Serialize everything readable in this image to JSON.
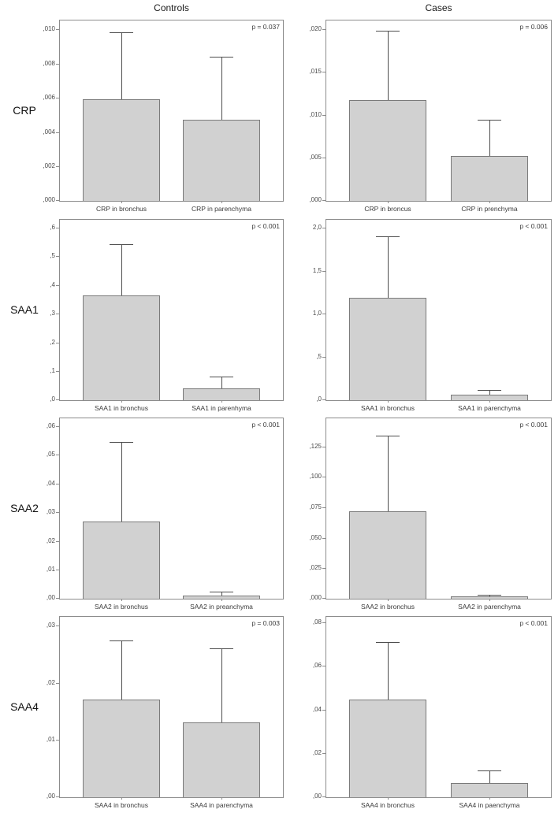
{
  "headers": [
    "Controls",
    "Cases"
  ],
  "rows": [
    "CRP",
    "SAA1",
    "SAA2",
    "SAA4"
  ],
  "colors": {
    "bar_fill": "#d1d1d1",
    "bar_border": "#7a7a7a",
    "frame_border": "#8c8c8c",
    "error_bar": "#4d4d4d",
    "text": "#3a3a3a"
  },
  "chart_data": [
    {
      "type": "bar",
      "row": "CRP",
      "group": "Controls",
      "p_label": "p = 0.037",
      "ylim": [
        0,
        0.0105
      ],
      "yticks": [
        {
          "v": 0,
          "label": ",000"
        },
        {
          "v": 0.002,
          "label": ",002"
        },
        {
          "v": 0.004,
          "label": ",004"
        },
        {
          "v": 0.006,
          "label": ",006"
        },
        {
          "v": 0.008,
          "label": ",008"
        },
        {
          "v": 0.01,
          "label": ",010"
        }
      ],
      "categories": [
        "CRP in bronchus",
        "CRP in parenchyma"
      ],
      "values": [
        0.0059,
        0.0047
      ],
      "error_upper": [
        0.0098,
        0.0084
      ]
    },
    {
      "type": "bar",
      "row": "CRP",
      "group": "Cases",
      "p_label": "p = 0.006",
      "ylim": [
        0,
        0.021
      ],
      "yticks": [
        {
          "v": 0,
          "label": ",000"
        },
        {
          "v": 0.005,
          "label": ",005"
        },
        {
          "v": 0.01,
          "label": ",010"
        },
        {
          "v": 0.015,
          "label": ",015"
        },
        {
          "v": 0.02,
          "label": ",020"
        }
      ],
      "categories": [
        "CRP in broncus",
        "CRP in prenchyma"
      ],
      "values": [
        0.0117,
        0.0052
      ],
      "error_upper": [
        0.0198,
        0.0094
      ]
    },
    {
      "type": "bar",
      "row": "SAA1",
      "group": "Controls",
      "p_label": "p < 0.001",
      "ylim": [
        0,
        0.627
      ],
      "yticks": [
        {
          "v": 0,
          "label": ",0"
        },
        {
          "v": 0.1,
          "label": ",1"
        },
        {
          "v": 0.2,
          "label": ",2"
        },
        {
          "v": 0.3,
          "label": ",3"
        },
        {
          "v": 0.4,
          "label": ",4"
        },
        {
          "v": 0.5,
          "label": ",5"
        },
        {
          "v": 0.6,
          "label": ",6"
        }
      ],
      "categories": [
        "SAA1 in bronchus",
        "SAA1 in parenhyma"
      ],
      "values": [
        0.363,
        0.041
      ],
      "error_upper": [
        0.543,
        0.081
      ]
    },
    {
      "type": "bar",
      "row": "SAA1",
      "group": "Cases",
      "p_label": "p < 0.001",
      "ylim": [
        0,
        2.09
      ],
      "yticks": [
        {
          "v": 0,
          "label": ",0"
        },
        {
          "v": 0.5,
          "label": ",5"
        },
        {
          "v": 1.0,
          "label": "1,0"
        },
        {
          "v": 1.5,
          "label": "1,5"
        },
        {
          "v": 2.0,
          "label": "2,0"
        }
      ],
      "categories": [
        "SAA1 in bronchus",
        "SAA1 in parenchyma"
      ],
      "values": [
        1.19,
        0.064
      ],
      "error_upper": [
        1.9,
        0.115
      ]
    },
    {
      "type": "bar",
      "row": "SAA2",
      "group": "Controls",
      "p_label": "p < 0.001",
      "ylim": [
        0,
        0.0627
      ],
      "yticks": [
        {
          "v": 0,
          "label": ",00"
        },
        {
          "v": 0.01,
          "label": ",01"
        },
        {
          "v": 0.02,
          "label": ",02"
        },
        {
          "v": 0.03,
          "label": ",03"
        },
        {
          "v": 0.04,
          "label": ",04"
        },
        {
          "v": 0.05,
          "label": ",05"
        },
        {
          "v": 0.06,
          "label": ",06"
        }
      ],
      "categories": [
        "SAA2 in bronchus",
        "SAA2 in preanchyma"
      ],
      "values": [
        0.0267,
        0.0012
      ],
      "error_upper": [
        0.0545,
        0.0025
      ]
    },
    {
      "type": "bar",
      "row": "SAA2",
      "group": "Cases",
      "p_label": "p < 0.001",
      "ylim": [
        0,
        0.148
      ],
      "yticks": [
        {
          "v": 0,
          "label": ",000"
        },
        {
          "v": 0.025,
          "label": ",025"
        },
        {
          "v": 0.05,
          "label": ",050"
        },
        {
          "v": 0.075,
          "label": ",075"
        },
        {
          "v": 0.1,
          "label": ",100"
        },
        {
          "v": 0.125,
          "label": ",125"
        }
      ],
      "categories": [
        "SAA2 in bronchus",
        "SAA2 in parenchyma"
      ],
      "values": [
        0.0715,
        0.002
      ],
      "error_upper": [
        0.134,
        0.0035
      ]
    },
    {
      "type": "bar",
      "row": "SAA4",
      "group": "Controls",
      "p_label": "p = 0.003",
      "ylim": [
        0,
        0.0315
      ],
      "yticks": [
        {
          "v": 0,
          "label": ",00"
        },
        {
          "v": 0.01,
          "label": ",01"
        },
        {
          "v": 0.02,
          "label": ",02"
        },
        {
          "v": 0.03,
          "label": ",03"
        }
      ],
      "categories": [
        "SAA4 in bronchus",
        "SAA4 in parenchyma"
      ],
      "values": [
        0.0171,
        0.013
      ],
      "error_upper": [
        0.0274,
        0.026
      ]
    },
    {
      "type": "bar",
      "row": "SAA4",
      "group": "Cases",
      "p_label": "p < 0.001",
      "ylim": [
        0,
        0.0824
      ],
      "yticks": [
        {
          "v": 0,
          "label": ",00"
        },
        {
          "v": 0.02,
          "label": ",02"
        },
        {
          "v": 0.04,
          "label": ",04"
        },
        {
          "v": 0.06,
          "label": ",06"
        },
        {
          "v": 0.08,
          "label": ",08"
        }
      ],
      "categories": [
        "SAA4 in bronchus",
        "SAA4 in paenchyma"
      ],
      "values": [
        0.0447,
        0.0063
      ],
      "error_upper": [
        0.071,
        0.0122
      ]
    }
  ]
}
